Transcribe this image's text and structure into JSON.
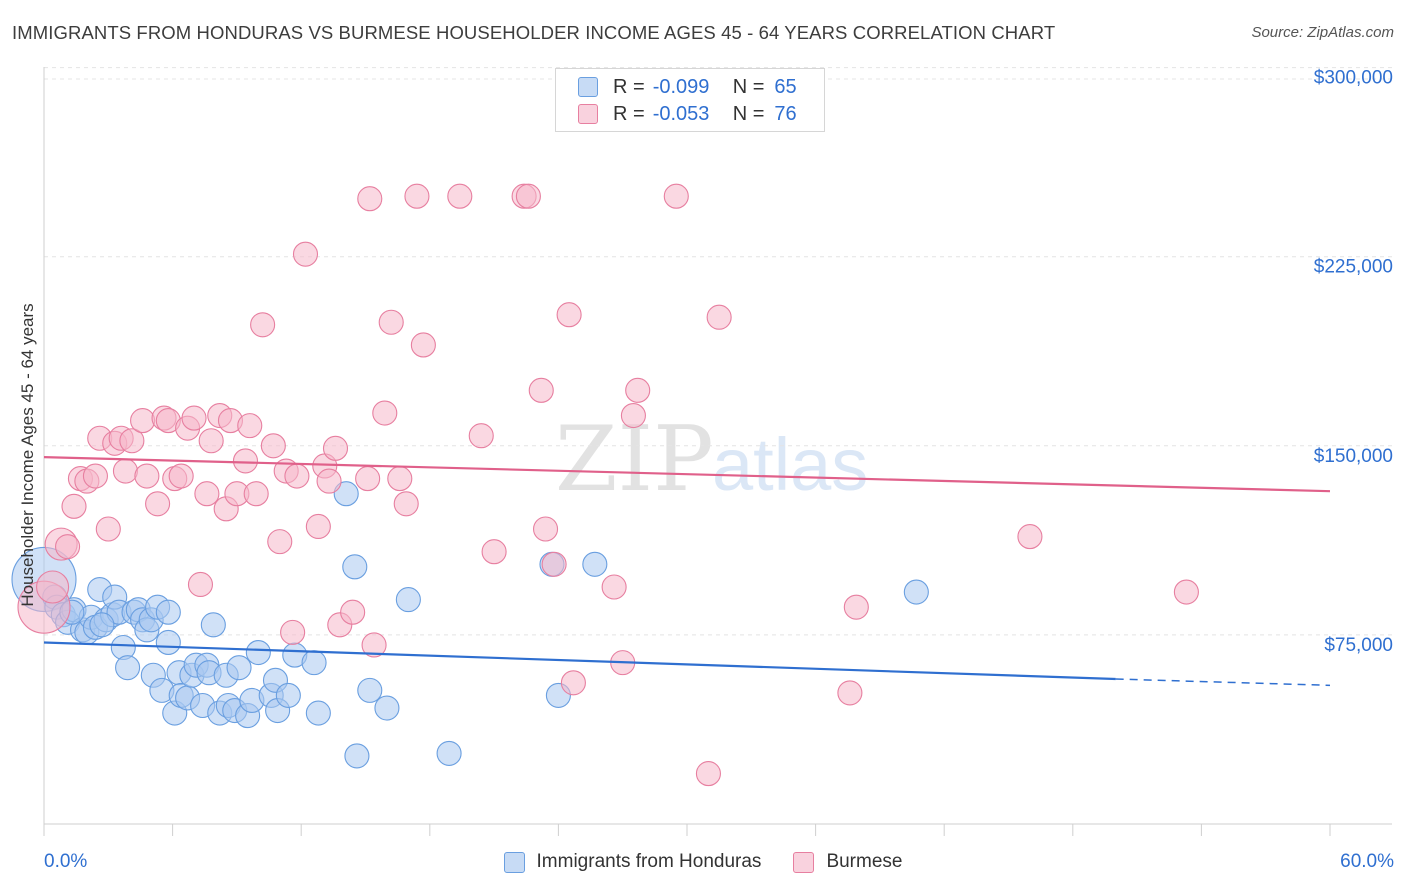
{
  "title": "IMMIGRANTS FROM HONDURAS VS BURMESE HOUSEHOLDER INCOME AGES 45 - 64 YEARS CORRELATION CHART",
  "source": "Source: ZipAtlas.com",
  "watermark": {
    "part1": "ZIP",
    "part2": "atlas"
  },
  "legend_top": {
    "rows": [
      {
        "r_label": "R =",
        "r_value": "-0.099",
        "n_label": "N =",
        "n_value": "65",
        "color": "#a9c8f0"
      },
      {
        "r_label": "R =",
        "r_value": "-0.053",
        "n_label": "N =",
        "n_value": "76",
        "color": "#f5b8cb"
      }
    ]
  },
  "legend_bottom": {
    "items": [
      {
        "label": "Immigrants from Honduras",
        "color": "#a9c8f0"
      },
      {
        "label": "Burmese",
        "color": "#f5b8cb"
      }
    ]
  },
  "x_axis": {
    "min_label": "0.0%",
    "max_label": "60.0%"
  },
  "chart_data": {
    "type": "scatter",
    "title": "IMMIGRANTS FROM HONDURAS VS BURMESE HOUSEHOLDER INCOME AGES 45 - 64 YEARS CORRELATION CHART",
    "xlabel": "",
    "ylabel": "Householder Income Ages 45 - 64 years",
    "xlim": [
      0,
      60
    ],
    "ylim": [
      0,
      305000
    ],
    "y_ticks": [
      {
        "value": 75000,
        "label": "$75,000"
      },
      {
        "value": 150000,
        "label": "$150,000"
      },
      {
        "value": 225000,
        "label": "$225,000"
      },
      {
        "value": 300000,
        "label": "$300,000"
      }
    ],
    "series": [
      {
        "name": "Immigrants from Honduras",
        "color": "#6a9fe0",
        "fill": "#a9c8f0",
        "trend": {
          "x0": 0,
          "y0": 72000,
          "x1": 50,
          "y1": 57500,
          "dash_to_x": 60,
          "dash_to_y": 55000,
          "color": "#2f6fd0"
        },
        "points": [
          [
            0,
            97000,
            32
          ],
          [
            0.5,
            90000,
            12
          ],
          [
            0.6,
            86000,
            12
          ],
          [
            0.9,
            83000,
            12
          ],
          [
            1.1,
            80000,
            12
          ],
          [
            1.4,
            85000,
            12
          ],
          [
            1.8,
            77000,
            12
          ],
          [
            2.0,
            76000,
            12
          ],
          [
            2.2,
            82000,
            12
          ],
          [
            2.4,
            78000,
            12
          ],
          [
            2.6,
            93000,
            12
          ],
          [
            2.9,
            81000,
            12
          ],
          [
            3.2,
            83000,
            12
          ],
          [
            3.3,
            90000,
            12
          ],
          [
            3.5,
            84000,
            12
          ],
          [
            3.7,
            70000,
            12
          ],
          [
            3.9,
            62000,
            12
          ],
          [
            4.2,
            84000,
            12
          ],
          [
            4.4,
            85000,
            12
          ],
          [
            4.6,
            81000,
            12
          ],
          [
            4.8,
            77000,
            12
          ],
          [
            5.0,
            81000,
            12
          ],
          [
            5.1,
            59000,
            12
          ],
          [
            5.3,
            86000,
            12
          ],
          [
            5.5,
            53000,
            12
          ],
          [
            5.8,
            84000,
            12
          ],
          [
            5.8,
            72000,
            12
          ],
          [
            6.1,
            44000,
            12
          ],
          [
            6.3,
            60000,
            12
          ],
          [
            6.4,
            51000,
            12
          ],
          [
            6.7,
            50000,
            12
          ],
          [
            6.9,
            59000,
            12
          ],
          [
            7.1,
            63000,
            12
          ],
          [
            7.4,
            47000,
            12
          ],
          [
            7.6,
            63000,
            12
          ],
          [
            7.7,
            60000,
            12
          ],
          [
            7.9,
            79000,
            12
          ],
          [
            8.2,
            44000,
            12
          ],
          [
            8.5,
            59000,
            12
          ],
          [
            8.6,
            47000,
            12
          ],
          [
            8.9,
            45000,
            12
          ],
          [
            9.1,
            62000,
            12
          ],
          [
            9.5,
            43000,
            12
          ],
          [
            9.7,
            49000,
            12
          ],
          [
            10.0,
            68000,
            12
          ],
          [
            10.6,
            51000,
            12
          ],
          [
            10.8,
            57000,
            12
          ],
          [
            10.9,
            45000,
            12
          ],
          [
            11.4,
            51000,
            12
          ],
          [
            11.7,
            67000,
            12
          ],
          [
            12.6,
            64000,
            12
          ],
          [
            12.8,
            44000,
            12
          ],
          [
            14.1,
            131000,
            12
          ],
          [
            14.5,
            102000,
            12
          ],
          [
            14.6,
            27000,
            12
          ],
          [
            15.2,
            53000,
            12
          ],
          [
            16.0,
            46000,
            12
          ],
          [
            17.0,
            89000,
            12
          ],
          [
            18.9,
            28000,
            12
          ],
          [
            23.7,
            103000,
            12
          ],
          [
            24.0,
            51000,
            12
          ],
          [
            25.7,
            103000,
            12
          ],
          [
            40.7,
            92000,
            12
          ],
          [
            1.3,
            84000,
            12
          ],
          [
            2.7,
            79000,
            12
          ]
        ]
      },
      {
        "name": "Burmese",
        "color": "#e77fa0",
        "fill": "#f5b8cb",
        "trend": {
          "x0": 0,
          "y0": 145500,
          "x1": 60,
          "y1": 132000,
          "color": "#e0608a"
        },
        "points": [
          [
            0,
            86000,
            26
          ],
          [
            0.4,
            94000,
            16
          ],
          [
            0.8,
            111000,
            16
          ],
          [
            1.1,
            110000,
            12
          ],
          [
            1.4,
            126000,
            12
          ],
          [
            1.7,
            137000,
            12
          ],
          [
            2.0,
            136000,
            12
          ],
          [
            2.4,
            138000,
            12
          ],
          [
            2.6,
            153000,
            12
          ],
          [
            3.0,
            117000,
            12
          ],
          [
            3.3,
            151000,
            12
          ],
          [
            3.6,
            153000,
            12
          ],
          [
            3.8,
            140000,
            12
          ],
          [
            4.1,
            152000,
            12
          ],
          [
            4.6,
            160000,
            12
          ],
          [
            4.8,
            138000,
            12
          ],
          [
            5.3,
            127000,
            12
          ],
          [
            5.6,
            161000,
            12
          ],
          [
            5.8,
            160000,
            12
          ],
          [
            6.1,
            137000,
            12
          ],
          [
            6.4,
            138000,
            12
          ],
          [
            6.7,
            157000,
            12
          ],
          [
            7.0,
            161000,
            12
          ],
          [
            7.3,
            95000,
            12
          ],
          [
            7.6,
            131000,
            12
          ],
          [
            7.8,
            152000,
            12
          ],
          [
            8.2,
            162000,
            12
          ],
          [
            8.5,
            125000,
            12
          ],
          [
            8.7,
            160000,
            12
          ],
          [
            9.0,
            131000,
            12
          ],
          [
            9.4,
            144000,
            12
          ],
          [
            9.6,
            158000,
            12
          ],
          [
            9.9,
            131000,
            12
          ],
          [
            10.2,
            198000,
            12
          ],
          [
            10.7,
            150000,
            12
          ],
          [
            11.0,
            112000,
            12
          ],
          [
            11.3,
            140000,
            12
          ],
          [
            11.6,
            76000,
            12
          ],
          [
            11.8,
            138000,
            12
          ],
          [
            12.2,
            226000,
            12
          ],
          [
            12.8,
            118000,
            12
          ],
          [
            13.1,
            142000,
            12
          ],
          [
            13.3,
            136000,
            12
          ],
          [
            13.6,
            149000,
            12
          ],
          [
            13.8,
            79000,
            12
          ],
          [
            14.4,
            84000,
            12
          ],
          [
            15.1,
            137000,
            12
          ],
          [
            15.2,
            248000,
            12
          ],
          [
            15.4,
            71000,
            12
          ],
          [
            15.9,
            163000,
            12
          ],
          [
            16.2,
            199000,
            12
          ],
          [
            16.6,
            137000,
            12
          ],
          [
            16.9,
            127000,
            12
          ],
          [
            17.4,
            249000,
            12
          ],
          [
            17.7,
            190000,
            12
          ],
          [
            19.4,
            249000,
            12
          ],
          [
            20.4,
            154000,
            12
          ],
          [
            21.0,
            108000,
            12
          ],
          [
            22.4,
            249000,
            12
          ],
          [
            22.6,
            249000,
            12
          ],
          [
            23.2,
            172000,
            12
          ],
          [
            23.4,
            117000,
            12
          ],
          [
            23.8,
            103000,
            12
          ],
          [
            24.5,
            202000,
            12
          ],
          [
            24.7,
            56000,
            12
          ],
          [
            26.6,
            94000,
            12
          ],
          [
            27.0,
            64000,
            12
          ],
          [
            27.5,
            162000,
            12
          ],
          [
            27.7,
            172000,
            12
          ],
          [
            29.5,
            249000,
            12
          ],
          [
            31.0,
            20000,
            12
          ],
          [
            31.5,
            201000,
            12
          ],
          [
            37.6,
            52000,
            12
          ],
          [
            37.9,
            86000,
            12
          ],
          [
            46.0,
            114000,
            12
          ],
          [
            53.3,
            92000,
            12
          ]
        ]
      }
    ]
  }
}
